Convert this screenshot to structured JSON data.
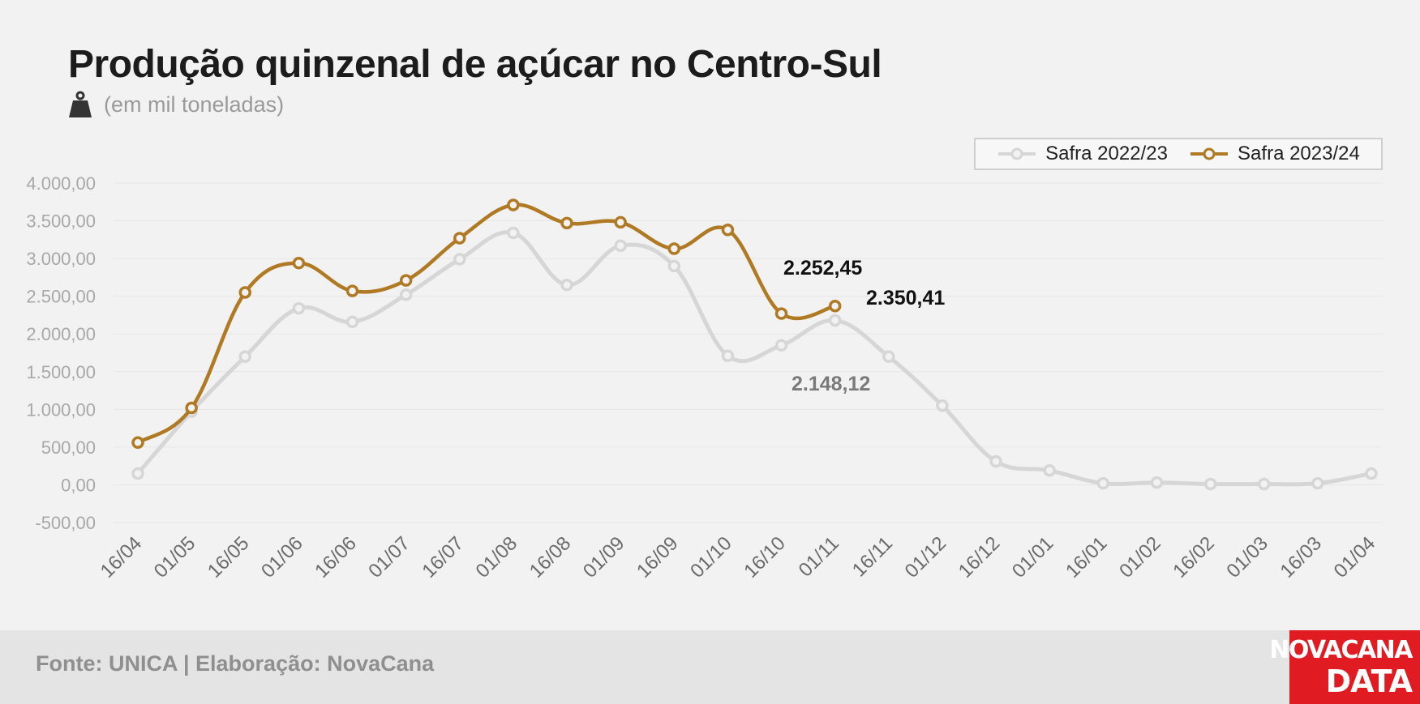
{
  "header": {
    "title": "Produção quinzenal de açúcar no Centro-Sul",
    "subtitle": "(em mil toneladas)",
    "icon": "weight-icon"
  },
  "legend": {
    "items": [
      {
        "label": "Safra 2022/23",
        "color": "#d6d6d6"
      },
      {
        "label": "Safra 2023/24",
        "color": "#b07a24"
      }
    ]
  },
  "chart_data": {
    "type": "line",
    "title": "Produção quinzenal de açúcar no Centro-Sul",
    "subtitle": "(em mil toneladas)",
    "categories": [
      "16/04",
      "01/05",
      "16/05",
      "01/06",
      "16/06",
      "01/07",
      "16/07",
      "01/08",
      "16/08",
      "01/09",
      "16/09",
      "01/10",
      "16/10",
      "01/11",
      "16/11",
      "01/12",
      "16/12",
      "01/01",
      "16/01",
      "01/02",
      "16/02",
      "01/03",
      "16/03",
      "01/04"
    ],
    "y_ticks": [
      "-500,00",
      "0,00",
      "500,00",
      "1.000,00",
      "1.500,00",
      "2.000,00",
      "2.500,00",
      "3.000,00",
      "3.500,00",
      "4.000,00"
    ],
    "ylim": [
      -500,
      4000
    ],
    "grid": true,
    "legend_position": "top-right",
    "series": [
      {
        "name": "Safra 2022/23",
        "color": "#d6d6d6",
        "values": [
          150,
          970,
          1700,
          2340,
          2160,
          2520,
          2990,
          3340,
          2650,
          3170,
          2900,
          1710,
          1850,
          2180,
          1700,
          1050,
          310,
          190,
          20,
          30,
          10,
          10,
          20,
          150
        ]
      },
      {
        "name": "Safra 2023/24",
        "color": "#b07a24",
        "values": [
          560,
          1020,
          2550,
          2940,
          2570,
          2710,
          3270,
          3710,
          3470,
          3480,
          3130,
          3380,
          2270,
          2370,
          null,
          null,
          null,
          null,
          null,
          null,
          null,
          null,
          null,
          null
        ]
      }
    ],
    "annotations": [
      {
        "text": "2.252,45",
        "color": "#111111"
      },
      {
        "text": "2.350,41",
        "color": "#111111"
      },
      {
        "text": "2.148,12",
        "color": "#7a7a7a"
      }
    ]
  },
  "footer": {
    "source": "Fonte: UNICA | Elaboração: NovaCana",
    "logo_line1": "NOVACANA",
    "logo_line2": "DATA"
  }
}
